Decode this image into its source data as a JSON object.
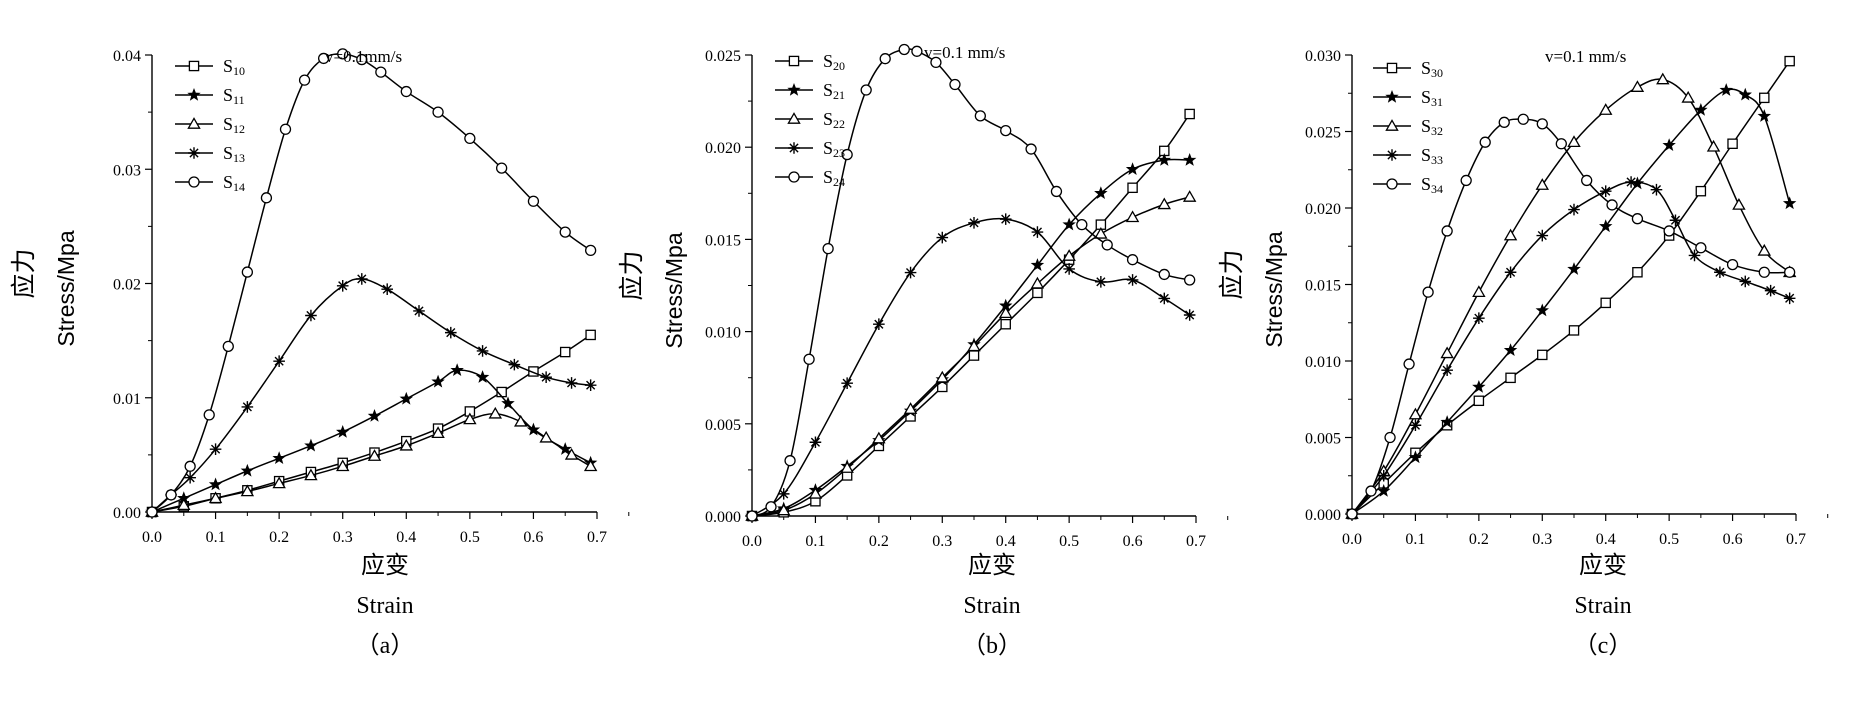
{
  "colors": {
    "ink": "#000000",
    "background": "#ffffff"
  },
  "chart_data": [
    {
      "type": "line",
      "panel_label": "（a）",
      "velocity_label": "v=0.1mm/s",
      "ylabel_cn": "应力",
      "ylabel_en": "Stress/Mpa",
      "xlabel_cn": "应变",
      "xlabel_en": "Strain",
      "xlim": [
        0,
        0.7
      ],
      "ylim": [
        0,
        0.04
      ],
      "xticks": [
        0,
        0.1,
        0.2,
        0.3,
        0.4,
        0.5,
        0.6,
        0.7
      ],
      "xtick_labels": [
        "0.0",
        "0.1",
        "0.2",
        "0.3",
        "0.4",
        "0.5",
        "0.6",
        "0.7"
      ],
      "yticks": [
        0,
        0.01,
        0.02,
        0.03,
        0.04
      ],
      "ytick_labels": [
        "0.00",
        "0.01",
        "0.02",
        "0.03",
        "0.04"
      ],
      "legend_position": "top-left",
      "grid": false,
      "series": [
        {
          "name": "S",
          "sub": "10",
          "marker": "square",
          "x": [
            0,
            0.05,
            0.1,
            0.15,
            0.2,
            0.25,
            0.3,
            0.35,
            0.4,
            0.45,
            0.5,
            0.55,
            0.6,
            0.65,
            0.69
          ],
          "y": [
            0,
            0.0005,
            0.0012,
            0.0019,
            0.0027,
            0.0035,
            0.0043,
            0.0052,
            0.0062,
            0.0073,
            0.0088,
            0.0105,
            0.0123,
            0.014,
            0.0155
          ]
        },
        {
          "name": "S",
          "sub": "11",
          "marker": "star",
          "x": [
            0,
            0.05,
            0.1,
            0.15,
            0.2,
            0.25,
            0.3,
            0.35,
            0.4,
            0.45,
            0.48,
            0.52,
            0.56,
            0.6,
            0.65,
            0.69
          ],
          "y": [
            0,
            0.0012,
            0.0024,
            0.0036,
            0.0047,
            0.0058,
            0.007,
            0.0084,
            0.0099,
            0.0114,
            0.0124,
            0.0118,
            0.0095,
            0.0072,
            0.0055,
            0.0043
          ]
        },
        {
          "name": "S",
          "sub": "12",
          "marker": "triangle",
          "x": [
            0,
            0.05,
            0.1,
            0.15,
            0.2,
            0.25,
            0.3,
            0.35,
            0.4,
            0.45,
            0.5,
            0.54,
            0.58,
            0.62,
            0.66,
            0.69
          ],
          "y": [
            0,
            0.0006,
            0.0012,
            0.0018,
            0.0025,
            0.0032,
            0.004,
            0.0049,
            0.0058,
            0.0069,
            0.0081,
            0.0086,
            0.0079,
            0.0065,
            0.005,
            0.004
          ]
        },
        {
          "name": "S",
          "sub": "13",
          "marker": "asterisk",
          "x": [
            0,
            0.03,
            0.06,
            0.1,
            0.15,
            0.2,
            0.25,
            0.3,
            0.33,
            0.37,
            0.42,
            0.47,
            0.52,
            0.57,
            0.62,
            0.66,
            0.69
          ],
          "y": [
            0,
            0.0015,
            0.003,
            0.0055,
            0.0092,
            0.0132,
            0.0172,
            0.0198,
            0.0204,
            0.0195,
            0.0176,
            0.0157,
            0.0141,
            0.0129,
            0.0118,
            0.0113,
            0.0111
          ]
        },
        {
          "name": "S",
          "sub": "14",
          "marker": "circle",
          "x": [
            0,
            0.03,
            0.06,
            0.09,
            0.12,
            0.15,
            0.18,
            0.21,
            0.24,
            0.27,
            0.3,
            0.33,
            0.36,
            0.4,
            0.45,
            0.5,
            0.55,
            0.6,
            0.65,
            0.69
          ],
          "y": [
            0,
            0.0015,
            0.004,
            0.0085,
            0.0145,
            0.021,
            0.0275,
            0.0335,
            0.0378,
            0.0397,
            0.0401,
            0.0396,
            0.0385,
            0.0368,
            0.035,
            0.0327,
            0.0301,
            0.0272,
            0.0245,
            0.0229
          ]
        }
      ]
    },
    {
      "type": "line",
      "panel_label": "（b）",
      "velocity_label": "v=0.1 mm/s",
      "ylabel_cn": "应力",
      "ylabel_en": "Stress/Mpa",
      "xlabel_cn": "应变",
      "xlabel_en": "Strain",
      "xlim": [
        0,
        0.7
      ],
      "ylim": [
        0,
        0.025
      ],
      "xticks": [
        0,
        0.1,
        0.2,
        0.3,
        0.4,
        0.5,
        0.6,
        0.7
      ],
      "xtick_labels": [
        "0.0",
        "0.1",
        "0.2",
        "0.3",
        "0.4",
        "0.5",
        "0.6",
        "0.7"
      ],
      "yticks": [
        0,
        0.005,
        0.01,
        0.015,
        0.02,
        0.025
      ],
      "ytick_labels": [
        "0.000",
        "0.005",
        "0.010",
        "0.015",
        "0.020",
        "0.025"
      ],
      "legend_position": "top-left",
      "grid": false,
      "series": [
        {
          "name": "S",
          "sub": "20",
          "marker": "square",
          "x": [
            0,
            0.05,
            0.1,
            0.15,
            0.2,
            0.25,
            0.3,
            0.35,
            0.4,
            0.45,
            0.5,
            0.55,
            0.6,
            0.65,
            0.69
          ],
          "y": [
            0,
            0.0002,
            0.0008,
            0.0022,
            0.0038,
            0.0054,
            0.007,
            0.0087,
            0.0104,
            0.0121,
            0.0139,
            0.0158,
            0.0178,
            0.0198,
            0.0218
          ]
        },
        {
          "name": "S",
          "sub": "21",
          "marker": "star",
          "x": [
            0,
            0.05,
            0.1,
            0.15,
            0.2,
            0.25,
            0.3,
            0.35,
            0.4,
            0.45,
            0.5,
            0.55,
            0.6,
            0.65,
            0.69
          ],
          "y": [
            0,
            0.0004,
            0.0014,
            0.0027,
            0.0041,
            0.0057,
            0.0074,
            0.0093,
            0.0114,
            0.0136,
            0.0158,
            0.0175,
            0.0188,
            0.0193,
            0.0193
          ]
        },
        {
          "name": "S",
          "sub": "22",
          "marker": "triangle",
          "x": [
            0,
            0.05,
            0.1,
            0.15,
            0.2,
            0.25,
            0.3,
            0.35,
            0.4,
            0.45,
            0.5,
            0.55,
            0.6,
            0.65,
            0.69
          ],
          "y": [
            0,
            0.0003,
            0.0012,
            0.0026,
            0.0042,
            0.0058,
            0.0075,
            0.0092,
            0.011,
            0.0126,
            0.0141,
            0.0153,
            0.0162,
            0.0169,
            0.0173
          ]
        },
        {
          "name": "S",
          "sub": "23",
          "marker": "asterisk",
          "x": [
            0,
            0.05,
            0.1,
            0.15,
            0.2,
            0.25,
            0.3,
            0.35,
            0.4,
            0.45,
            0.5,
            0.55,
            0.6,
            0.65,
            0.69
          ],
          "y": [
            0,
            0.0012,
            0.004,
            0.0072,
            0.0104,
            0.0132,
            0.0151,
            0.0159,
            0.0161,
            0.0154,
            0.0134,
            0.0127,
            0.0128,
            0.0118,
            0.0109
          ]
        },
        {
          "name": "S",
          "sub": "24",
          "marker": "circle",
          "x": [
            0,
            0.03,
            0.06,
            0.09,
            0.12,
            0.15,
            0.18,
            0.21,
            0.24,
            0.26,
            0.29,
            0.32,
            0.36,
            0.4,
            0.44,
            0.48,
            0.52,
            0.56,
            0.6,
            0.65,
            0.69
          ],
          "y": [
            0,
            0.0005,
            0.003,
            0.0085,
            0.0145,
            0.0196,
            0.0231,
            0.0248,
            0.0253,
            0.0252,
            0.0246,
            0.0234,
            0.0217,
            0.0209,
            0.0199,
            0.0176,
            0.0158,
            0.0147,
            0.0139,
            0.0131,
            0.0128
          ]
        }
      ]
    },
    {
      "type": "line",
      "panel_label": "（c）",
      "velocity_label": "v=0.1 mm/s",
      "ylabel_cn": "应力",
      "ylabel_en": "Stress/Mpa",
      "xlabel_cn": "应变",
      "xlabel_en": "Strain",
      "xlim": [
        0,
        0.7
      ],
      "ylim": [
        0,
        0.03
      ],
      "xticks": [
        0,
        0.1,
        0.2,
        0.3,
        0.4,
        0.5,
        0.6,
        0.7
      ],
      "xtick_labels": [
        "0.0",
        "0.1",
        "0.2",
        "0.3",
        "0.4",
        "0.5",
        "0.6",
        "0.7"
      ],
      "yticks": [
        0,
        0.005,
        0.01,
        0.015,
        0.02,
        0.025,
        0.03
      ],
      "ytick_labels": [
        "0.000",
        "0.005",
        "0.010",
        "0.015",
        "0.020",
        "0.025",
        "0.030"
      ],
      "legend_position": "top-left",
      "grid": false,
      "series": [
        {
          "name": "S",
          "sub": "30",
          "marker": "square",
          "x": [
            0,
            0.05,
            0.1,
            0.15,
            0.2,
            0.25,
            0.3,
            0.35,
            0.4,
            0.45,
            0.5,
            0.55,
            0.6,
            0.65,
            0.69
          ],
          "y": [
            0,
            0.002,
            0.004,
            0.0058,
            0.0074,
            0.0089,
            0.0104,
            0.012,
            0.0138,
            0.0158,
            0.0182,
            0.0211,
            0.0242,
            0.0272,
            0.0296
          ]
        },
        {
          "name": "S",
          "sub": "31",
          "marker": "star",
          "x": [
            0,
            0.05,
            0.1,
            0.15,
            0.2,
            0.25,
            0.3,
            0.35,
            0.4,
            0.45,
            0.5,
            0.55,
            0.59,
            0.62,
            0.65,
            0.69
          ],
          "y": [
            0,
            0.0015,
            0.0037,
            0.006,
            0.0083,
            0.0107,
            0.0133,
            0.016,
            0.0188,
            0.0216,
            0.0241,
            0.0264,
            0.0277,
            0.0274,
            0.026,
            0.0203
          ]
        },
        {
          "name": "S",
          "sub": "32",
          "marker": "triangle",
          "x": [
            0,
            0.05,
            0.1,
            0.15,
            0.2,
            0.25,
            0.3,
            0.35,
            0.4,
            0.45,
            0.49,
            0.53,
            0.57,
            0.61,
            0.65,
            0.69
          ],
          "y": [
            0,
            0.0028,
            0.0065,
            0.0105,
            0.0145,
            0.0182,
            0.0215,
            0.0243,
            0.0264,
            0.0279,
            0.0284,
            0.0272,
            0.024,
            0.0202,
            0.0172,
            0.0158
          ]
        },
        {
          "name": "S",
          "sub": "33",
          "marker": "asterisk",
          "x": [
            0,
            0.05,
            0.1,
            0.15,
            0.2,
            0.25,
            0.3,
            0.35,
            0.4,
            0.44,
            0.48,
            0.51,
            0.54,
            0.58,
            0.62,
            0.66,
            0.69
          ],
          "y": [
            0,
            0.0025,
            0.0058,
            0.0094,
            0.0128,
            0.0158,
            0.0182,
            0.0199,
            0.0211,
            0.0217,
            0.0212,
            0.0192,
            0.0169,
            0.0158,
            0.0152,
            0.0146,
            0.0141
          ]
        },
        {
          "name": "S",
          "sub": "34",
          "marker": "circle",
          "x": [
            0,
            0.03,
            0.06,
            0.09,
            0.12,
            0.15,
            0.18,
            0.21,
            0.24,
            0.27,
            0.3,
            0.33,
            0.37,
            0.41,
            0.45,
            0.5,
            0.55,
            0.6,
            0.65,
            0.69
          ],
          "y": [
            0,
            0.0015,
            0.005,
            0.0098,
            0.0145,
            0.0185,
            0.0218,
            0.0243,
            0.0256,
            0.0258,
            0.0255,
            0.0242,
            0.0218,
            0.0202,
            0.0193,
            0.0185,
            0.0174,
            0.0163,
            0.0158,
            0.0158
          ]
        }
      ]
    }
  ]
}
